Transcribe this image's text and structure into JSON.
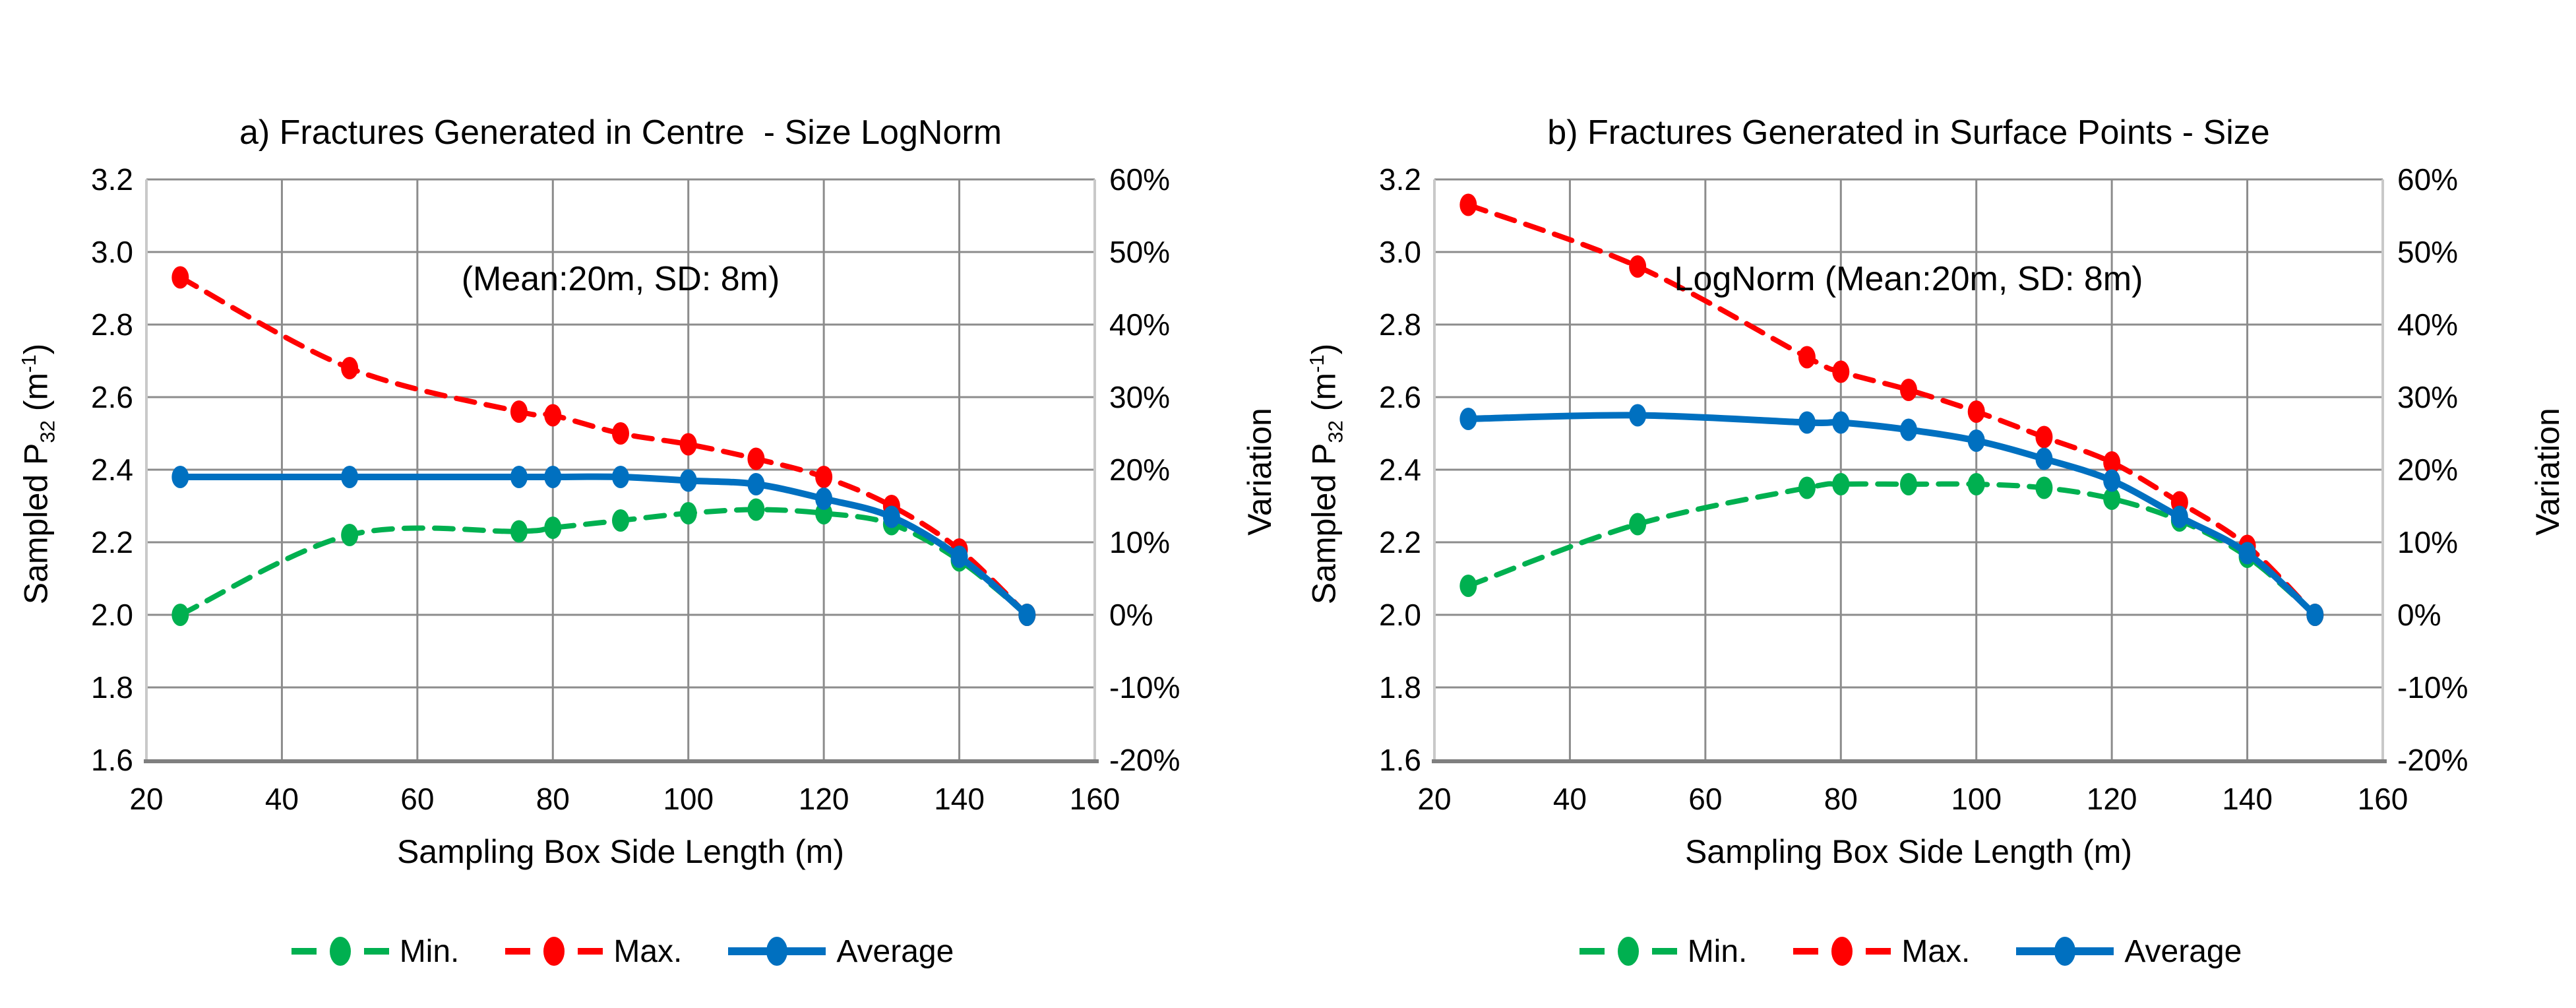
{
  "colors": {
    "min": "#00B050",
    "max": "#FF0000",
    "average": "#0070C0",
    "gridline": "#8C8C8C",
    "plot_border": "#C9C9C9",
    "axis_line": "#7F7F7F",
    "text": "#000000"
  },
  "axes": {
    "y_left_ticks": [
      "3.2",
      "3.0",
      "2.8",
      "2.6",
      "2.4",
      "2.2",
      "2.0",
      "1.8",
      "1.6"
    ],
    "y_right_ticks": [
      "60%",
      "50%",
      "40%",
      "30%",
      "20%",
      "10%",
      "0%",
      "-10%",
      "-20%"
    ],
    "x_ticks": [
      "20",
      "40",
      "60",
      "80",
      "100",
      "120",
      "140",
      "160"
    ]
  },
  "y_left_label_parts": {
    "prefix": "Sampled P",
    "sub": "32",
    "mid": " (m",
    "sup": "-1",
    "suffix": ")"
  },
  "y_right_label": "Variation",
  "x_label": "Sampling Box Side Length (m)",
  "legend": {
    "items": [
      {
        "name": "Min.",
        "color": "#00B050",
        "style": "dashed"
      },
      {
        "name": "Max.",
        "color": "#FF0000",
        "style": "dashed"
      },
      {
        "name": "Average",
        "color": "#0070C0",
        "style": "solid"
      }
    ]
  },
  "charts": [
    {
      "title_line1": "a) Fractures Generated in Centre  - Size LogNorm",
      "title_line2": "(Mean:20m, SD: 8m)"
    },
    {
      "title_line1": "b) Fractures Generated in Surface Points - Size",
      "title_line2": "LogNorm (Mean:20m, SD: 8m)"
    }
  ],
  "chart_data": [
    {
      "type": "line",
      "title": "a) Fractures Generated in Centre - Size LogNorm (Mean:20m, SD: 8m)",
      "x": [
        25,
        50,
        75,
        80,
        90,
        100,
        110,
        120,
        130,
        140,
        150
      ],
      "series": [
        {
          "name": "Min.",
          "color": "#00B050",
          "style": "dashed",
          "values": [
            2.0,
            2.22,
            2.23,
            2.24,
            2.26,
            2.28,
            2.29,
            2.28,
            2.25,
            2.15,
            2.0
          ]
        },
        {
          "name": "Max.",
          "color": "#FF0000",
          "style": "dashed",
          "values": [
            2.93,
            2.68,
            2.56,
            2.55,
            2.5,
            2.47,
            2.43,
            2.38,
            2.3,
            2.18,
            2.0
          ]
        },
        {
          "name": "Average",
          "color": "#0070C0",
          "style": "solid",
          "values": [
            2.38,
            2.38,
            2.38,
            2.38,
            2.38,
            2.37,
            2.36,
            2.32,
            2.27,
            2.16,
            2.0
          ]
        }
      ],
      "xlabel": "Sampling Box Side Length (m)",
      "ylabel": "Sampled P32 (m-1)",
      "ylabel_right": "Variation",
      "xlim": [
        20,
        160
      ],
      "ylim": [
        1.6,
        3.2
      ],
      "y2lim_percent": [
        -20,
        60
      ],
      "grid": true,
      "legend_position": "bottom"
    },
    {
      "type": "line",
      "title": "b) Fractures Generated in Surface Points - Size LogNorm (Mean:20m, SD: 8m)",
      "x": [
        25,
        50,
        75,
        80,
        90,
        100,
        110,
        120,
        130,
        140,
        150
      ],
      "series": [
        {
          "name": "Min.",
          "color": "#00B050",
          "style": "dashed",
          "values": [
            2.08,
            2.25,
            2.35,
            2.36,
            2.36,
            2.36,
            2.35,
            2.32,
            2.26,
            2.16,
            2.0
          ]
        },
        {
          "name": "Max.",
          "color": "#FF0000",
          "style": "dashed",
          "values": [
            3.13,
            2.96,
            2.71,
            2.67,
            2.62,
            2.56,
            2.49,
            2.42,
            2.31,
            2.19,
            2.0
          ]
        },
        {
          "name": "Average",
          "color": "#0070C0",
          "style": "solid",
          "values": [
            2.54,
            2.55,
            2.53,
            2.53,
            2.51,
            2.48,
            2.43,
            2.37,
            2.27,
            2.17,
            2.0
          ]
        }
      ],
      "xlabel": "Sampling Box Side Length (m)",
      "ylabel": "Sampled P32 (m-1)",
      "ylabel_right": "Variation",
      "xlim": [
        20,
        160
      ],
      "ylim": [
        1.6,
        3.2
      ],
      "y2lim_percent": [
        -20,
        60
      ],
      "grid": true,
      "legend_position": "bottom"
    }
  ]
}
